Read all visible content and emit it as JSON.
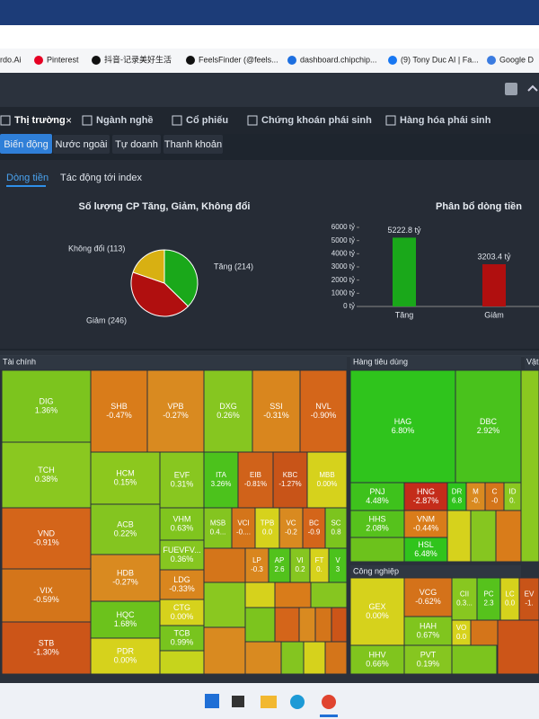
{
  "bookmarks": [
    "rdo.Ai",
    "Pinterest",
    "抖音-记录美好生活",
    "FeelsFinder (@feels...",
    "dashboard.chipchip...",
    "(9) Tony Duc AI | Fa...",
    "Google D"
  ],
  "main_tabs": [
    "Thị trường",
    "Ngành nghề",
    "Cổ phiếu",
    "Chứng khoán phái sinh",
    "Hàng hóa phái sinh"
  ],
  "sub_tabs": [
    "Biến động",
    "Nước ngoài",
    "Tự doanh",
    "Thanh khoản"
  ],
  "view_tabs": [
    "Dòng tiền",
    "Tác động tới index"
  ],
  "chart_data": [
    {
      "type": "pie",
      "title": "Số lượng CP Tăng, Giảm, Không đổi",
      "categories": [
        "Tăng",
        "Giảm",
        "Không đổi"
      ],
      "values": [
        214,
        246,
        113
      ],
      "value_labels": [
        "Tăng (214)",
        "Giảm (246)",
        "Không đổi (113)"
      ],
      "colors": [
        "#1aa81a",
        "#b00f0f",
        "#d8b012"
      ]
    },
    {
      "type": "bar",
      "title": "Phân bổ dòng tiền",
      "categories": [
        "Tăng",
        "Giảm"
      ],
      "values": [
        5222.8,
        3203.4
      ],
      "value_labels": [
        "5222.8 tỷ",
        "3203.4 tỷ"
      ],
      "colors": [
        "#1aa81a",
        "#b00f0f"
      ],
      "ylim": [
        0,
        6000
      ],
      "yticks": [
        {
          "value": 0,
          "label": "0 tỷ"
        },
        {
          "value": 1000,
          "label": "1000 tỷ"
        },
        {
          "value": 2000,
          "label": "2000 tỷ"
        },
        {
          "value": 3000,
          "label": "3000 tỷ"
        },
        {
          "value": 4000,
          "label": "4000 tỷ"
        },
        {
          "value": 5000,
          "label": "5000 tỷ"
        },
        {
          "value": 6000,
          "label": "6000 tỷ"
        }
      ]
    }
  ],
  "treemap": [
    {
      "title": "Tài chính",
      "cells": [
        {
          "ticker": "DIG",
          "change": "1.36%",
          "color": "#7cc41e"
        },
        {
          "ticker": "TCH",
          "change": "0.38%",
          "color": "#8ac820"
        },
        {
          "ticker": "VND",
          "change": "-0.91%",
          "color": "#d4651a"
        },
        {
          "ticker": "VIX",
          "change": "-0.59%",
          "color": "#d4751a"
        },
        {
          "ticker": "STB",
          "change": "-1.30%",
          "color": "#cc5518"
        },
        {
          "ticker": "SHB",
          "change": "-0.47%",
          "color": "#d97c1a"
        },
        {
          "ticker": "VPB",
          "change": "-0.27%",
          "color": "#d98a20"
        },
        {
          "ticker": "DXG",
          "change": "0.26%",
          "color": "#86c620"
        },
        {
          "ticker": "SSI",
          "change": "-0.31%",
          "color": "#d9861e"
        },
        {
          "ticker": "NVL",
          "change": "-0.90%",
          "color": "#d4661a"
        },
        {
          "ticker": "HCM",
          "change": "0.15%",
          "color": "#8cc81e"
        },
        {
          "ticker": "EVF",
          "change": "0.31%",
          "color": "#88c720"
        },
        {
          "ticker": "ITA",
          "change": "3.26%",
          "color": "#4cc21c"
        },
        {
          "ticker": "EIB",
          "change": "-0.81%",
          "color": "#d0621a"
        },
        {
          "ticker": "KBC",
          "change": "-1.27%",
          "color": "#c85418"
        },
        {
          "ticker": "MBB",
          "change": "0.00%",
          "color": "#d6d21c"
        },
        {
          "ticker": "ACB",
          "change": "0.22%",
          "color": "#84c520"
        },
        {
          "ticker": "HDB",
          "change": "-0.27%",
          "color": "#d98a20"
        },
        {
          "ticker": "HQC",
          "change": "1.68%",
          "color": "#6cc21c"
        },
        {
          "ticker": "PDR",
          "change": "0.00%",
          "color": "#d6d21c"
        },
        {
          "ticker": "VHM",
          "change": "0.63%",
          "color": "#80c51e"
        },
        {
          "ticker": "FUEVFV...",
          "change": "0.36%",
          "color": "#86c620"
        },
        {
          "ticker": "LDG",
          "change": "-0.33%",
          "color": "#d9861e"
        },
        {
          "ticker": "CTG",
          "change": "0.00%",
          "color": "#d6d21c"
        },
        {
          "ticker": "TCB",
          "change": "0.99%",
          "color": "#78c41e"
        },
        {
          "ticker": "MSB",
          "change": "0.4...",
          "color": "#84c520"
        },
        {
          "ticker": "VCI",
          "change": "-0....",
          "color": "#d4751a"
        },
        {
          "ticker": "TPB",
          "change": "0.0",
          "color": "#d6d21c"
        },
        {
          "ticker": "VC",
          "change": "-0.2",
          "color": "#d98a20"
        },
        {
          "ticker": "BC",
          "change": "-0.9",
          "color": "#d4651a"
        },
        {
          "ticker": "SC",
          "change": "0.8",
          "color": "#7cc41e"
        },
        {
          "ticker": "LP",
          "change": "-0.3",
          "color": "#d9861e"
        },
        {
          "ticker": "AP",
          "change": "2.6",
          "color": "#52c21c"
        },
        {
          "ticker": "VI",
          "change": "0.2",
          "color": "#86c620"
        },
        {
          "ticker": "FT",
          "change": "0.",
          "color": "#d6d21c"
        },
        {
          "ticker": "V",
          "change": "3",
          "color": "#4cc21c"
        }
      ]
    },
    {
      "title": "Hàng tiêu dùng",
      "cells": [
        {
          "ticker": "HAG",
          "change": "6.80%",
          "color": "#2fc41c"
        },
        {
          "ticker": "DBC",
          "change": "2.92%",
          "color": "#49c21c"
        },
        {
          "ticker": "PNJ",
          "change": "4.48%",
          "color": "#3ec21c"
        },
        {
          "ticker": "HNG",
          "change": "-2.87%",
          "color": "#c42c1a"
        },
        {
          "ticker": "DR",
          "change": "6.8",
          "color": "#2fc41c"
        },
        {
          "ticker": "M",
          "change": "-0.",
          "color": "#d98a20"
        },
        {
          "ticker": "C",
          "change": "-0",
          "color": "#d4751a"
        },
        {
          "ticker": "ID",
          "change": "0.",
          "color": "#8ac820"
        },
        {
          "ticker": "HHS",
          "change": "2.08%",
          "color": "#56c21c"
        },
        {
          "ticker": "VNM",
          "change": "-0.44%",
          "color": "#d97c1a"
        },
        {
          "ticker": "HSL",
          "change": "6.48%",
          "color": "#30c41c"
        }
      ]
    },
    {
      "title": "Công nghiệp",
      "cells": [
        {
          "ticker": "GEX",
          "change": "0.00%",
          "color": "#d6d21c"
        },
        {
          "ticker": "VCG",
          "change": "-0.62%",
          "color": "#d4721a"
        },
        {
          "ticker": "HAH",
          "change": "0.67%",
          "color": "#80c51e"
        },
        {
          "ticker": "HHV",
          "change": "0.66%",
          "color": "#80c51e"
        },
        {
          "ticker": "PVT",
          "change": "0.19%",
          "color": "#86c620"
        },
        {
          "ticker": "CII",
          "change": "0.3...",
          "color": "#88c720"
        },
        {
          "ticker": "PC",
          "change": "2.3",
          "color": "#56c21c"
        },
        {
          "ticker": "LC",
          "change": "0.0",
          "color": "#d6d21c"
        },
        {
          "ticker": "EV",
          "change": "-1.",
          "color": "#c85418"
        },
        {
          "ticker": "VO",
          "change": "0.0",
          "color": "#d6d21c"
        }
      ]
    },
    {
      "title": "Vật",
      "cells": []
    }
  ]
}
